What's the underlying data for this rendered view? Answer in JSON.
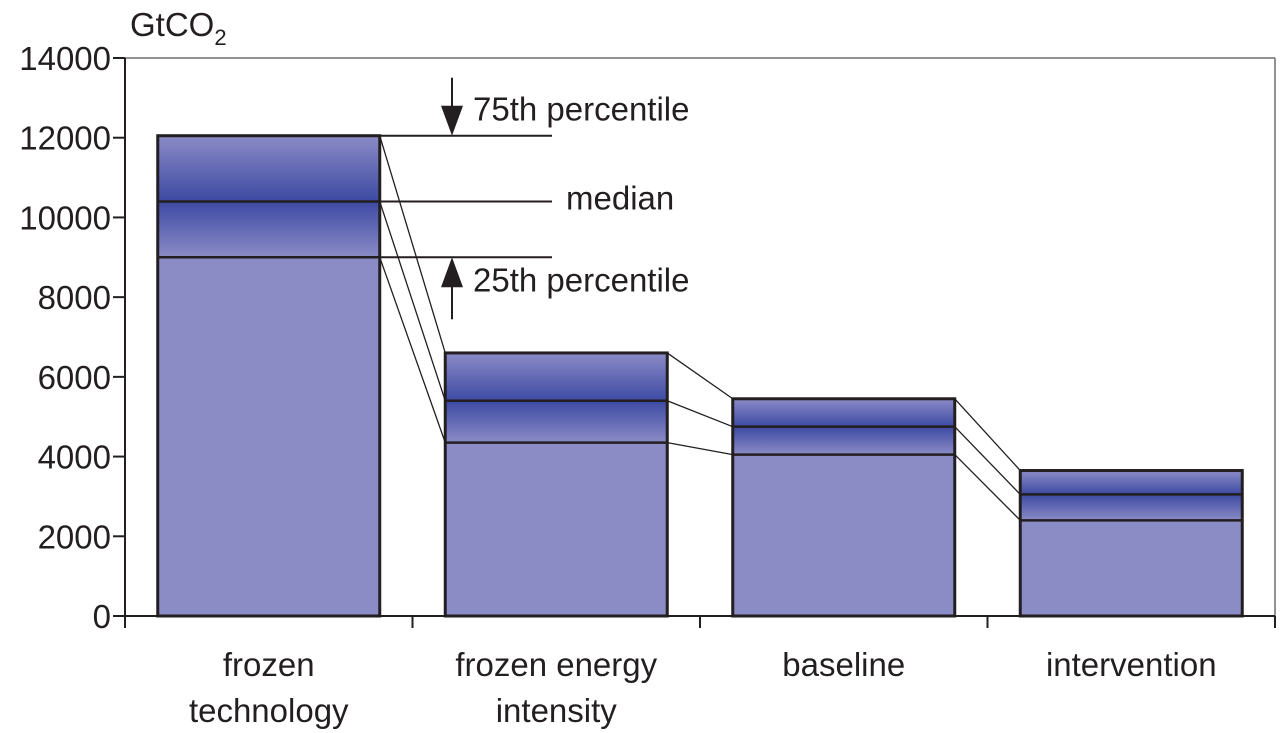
{
  "chart_data": {
    "type": "bar",
    "ylabel": "GtCO",
    "ylabel_subscript": "2",
    "ylim": [
      0,
      14000
    ],
    "yticks": [
      0,
      2000,
      4000,
      6000,
      8000,
      10000,
      12000,
      14000
    ],
    "categories": [
      [
        "frozen",
        "technology"
      ],
      [
        "frozen energy",
        "intensity"
      ],
      [
        "baseline"
      ],
      [
        "intervention"
      ]
    ],
    "series": [
      {
        "name": "25th percentile",
        "values": [
          9000,
          4350,
          4050,
          2400
        ]
      },
      {
        "name": "median",
        "values": [
          10400,
          5400,
          4750,
          3050
        ]
      },
      {
        "name": "75th percentile",
        "values": [
          12050,
          6600,
          5450,
          3650
        ]
      }
    ],
    "annotations": [
      "75th percentile",
      "median",
      "25th percentile"
    ],
    "colors": {
      "bar_fill": "#8b8bc6",
      "band_dark": "#3d4aa3",
      "outline": "#231f20"
    },
    "grid": false,
    "frame": true
  }
}
